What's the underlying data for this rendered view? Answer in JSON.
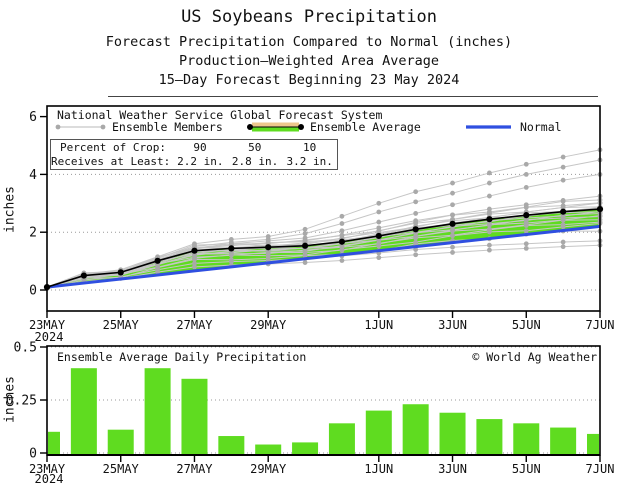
{
  "titles": {
    "line1": "US Soybeans Precipitation",
    "line2": "Forecast Precipitation Compared to Normal (inches)",
    "line3": "Production–Weighted Area Average",
    "line4": "15–Day Forecast Beginning 23 May 2024"
  },
  "colors": {
    "green": "#5fdc20",
    "blue": "#2f4fe0",
    "black": "#000000",
    "member_line": "#c6c6c6",
    "member_dot": "#a9a9a9",
    "grid": "#9a9a9a",
    "tan": "#edc78d"
  },
  "top_chart": {
    "legend_source": "National Weather Service Global Forecast System",
    "legend_members": "Ensemble Members",
    "legend_average": "Ensemble Average",
    "legend_normal": "Normal",
    "ylabel": "inches",
    "crop_box": {
      "row1": [
        "Percent of Crop: ",
        "90",
        "50",
        "10"
      ],
      "row2": [
        "Receives at Least: ",
        "2.2 in.",
        "2.8 in.",
        "3.2 in."
      ]
    }
  },
  "bottom_chart": {
    "title": "Ensemble Average Daily Precipitation",
    "copyright": "© World Ag Weather",
    "ylabel": "inches"
  },
  "chart_data": [
    {
      "type": "line",
      "title": "Forecast Precipitation Compared to Normal (inches)",
      "ylabel": "inches",
      "ylim": [
        0,
        6.4
      ],
      "yticks": [
        0,
        2,
        4,
        6
      ],
      "grid": "horizontal-dotted",
      "legend_position": "top-inside",
      "x": [
        "23MAY",
        "24MAY",
        "25MAY",
        "26MAY",
        "27MAY",
        "28MAY",
        "29MAY",
        "30MAY",
        "31MAY",
        "1JUN",
        "2JUN",
        "3JUN",
        "4JUN",
        "5JUN",
        "6JUN",
        "7JUN"
      ],
      "xtick_indices": [
        0,
        2,
        4,
        6,
        9,
        11,
        13,
        15
      ],
      "xtick_labels": [
        "23MAY",
        "25MAY",
        "27MAY",
        "29MAY",
        "1JUN",
        "3JUN",
        "5JUN",
        "7JUN"
      ],
      "x_year_label": "2024",
      "series": [
        {
          "name": "Ensemble Average",
          "color": "#000000",
          "values": [
            0.1,
            0.5,
            0.61,
            1.01,
            1.36,
            1.44,
            1.48,
            1.53,
            1.67,
            1.87,
            2.1,
            2.29,
            2.45,
            2.59,
            2.71,
            2.8
          ]
        },
        {
          "name": "Normal",
          "color": "#2f4fe0",
          "values": [
            0.1,
            0.24,
            0.38,
            0.52,
            0.66,
            0.8,
            0.94,
            1.08,
            1.22,
            1.36,
            1.5,
            1.64,
            1.78,
            1.92,
            2.06,
            2.2
          ]
        }
      ],
      "fill_between": {
        "upper": "Ensemble Average",
        "lower": "Normal",
        "color": "#5fdc20"
      },
      "ensemble_members": {
        "explicit": [
          [
            0.1,
            0.55,
            0.7,
            1.15,
            1.6,
            1.75,
            1.85,
            2.1,
            2.55,
            3.0,
            3.4,
            3.7,
            4.05,
            4.35,
            4.6,
            4.85
          ],
          [
            0.1,
            0.5,
            0.65,
            1.1,
            1.5,
            1.65,
            1.75,
            1.95,
            2.3,
            2.7,
            3.05,
            3.35,
            3.7,
            4.0,
            4.25,
            4.5
          ],
          [
            0.1,
            0.5,
            0.6,
            1.05,
            1.45,
            1.6,
            1.7,
            1.8,
            2.05,
            2.35,
            2.65,
            2.95,
            3.25,
            3.55,
            3.8,
            4.0
          ],
          [
            0.1,
            0.5,
            0.62,
            1.05,
            1.45,
            1.55,
            1.62,
            1.7,
            1.9,
            2.15,
            2.4,
            2.6,
            2.8,
            2.95,
            3.1,
            3.25
          ],
          [
            0.05,
            0.35,
            0.45,
            0.7,
            0.92,
            0.98,
            1.02,
            1.08,
            1.18,
            1.28,
            1.4,
            1.48,
            1.55,
            1.6,
            1.66,
            1.7
          ],
          [
            0.05,
            0.3,
            0.4,
            0.62,
            0.8,
            0.86,
            0.9,
            0.95,
            1.02,
            1.12,
            1.22,
            1.3,
            1.38,
            1.44,
            1.5,
            1.55
          ]
        ],
        "multipliers": [
          1.12,
          1.09,
          1.06,
          1.04,
          1.02,
          1.0,
          0.98,
          0.96,
          0.94,
          0.92,
          0.9,
          0.87,
          0.84,
          0.8,
          0.73
        ],
        "wiggle_amp": 0.045
      },
      "annotation_table": {
        "rows": [
          [
            "Percent of Crop:",
            "90",
            "50",
            "10"
          ],
          [
            "Receives at Least:",
            "2.2 in.",
            "2.8 in.",
            "3.2 in."
          ]
        ]
      }
    },
    {
      "type": "bar",
      "title": "Ensemble Average Daily Precipitation",
      "ylabel": "inches",
      "ylim": [
        0,
        0.505
      ],
      "yticks": [
        0,
        0.25,
        0.5
      ],
      "ytick_labels": [
        "0",
        "0.25",
        "0.5"
      ],
      "grid": "horizontal-dotted",
      "categories": [
        "23MAY",
        "24MAY",
        "25MAY",
        "26MAY",
        "27MAY",
        "28MAY",
        "29MAY",
        "30MAY",
        "31MAY",
        "1JUN",
        "2JUN",
        "3JUN",
        "4JUN",
        "5JUN",
        "6JUN",
        "7JUN"
      ],
      "xtick_indices": [
        0,
        2,
        4,
        6,
        9,
        11,
        13,
        15
      ],
      "xtick_labels": [
        "23MAY",
        "25MAY",
        "27MAY",
        "29MAY",
        "1JUN",
        "3JUN",
        "5JUN",
        "7JUN"
      ],
      "x_year_label": "2024",
      "values": [
        0.1,
        0.4,
        0.11,
        0.4,
        0.35,
        0.08,
        0.04,
        0.05,
        0.14,
        0.2,
        0.23,
        0.19,
        0.16,
        0.14,
        0.12,
        0.09
      ],
      "bar_color": "#5fdc20"
    }
  ]
}
